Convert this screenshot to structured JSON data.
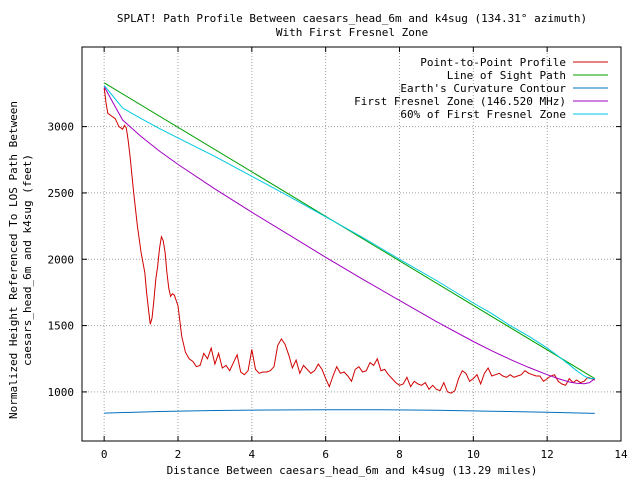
{
  "chart_data": {
    "type": "line",
    "title": "SPLAT! Path Profile Between caesars_head_6m and k4sug (134.31° azimuth)",
    "subtitle": "With First Fresnel Zone",
    "xlabel": "Distance Between caesars_head_6m and k4sug (13.29 miles)",
    "ylabel_line1": "Normalized Height Referenced To LOS Path Between",
    "ylabel_line2": "caesars_head_6m and k4sug (feet)",
    "xlim": [
      -0.6,
      14
    ],
    "ylim": [
      630,
      3600
    ],
    "x_ticks": [
      0,
      2,
      4,
      6,
      8,
      10,
      12,
      14
    ],
    "x_tick_labels": [
      "0",
      "2",
      "4",
      "6",
      "8",
      "10",
      "12",
      "14"
    ],
    "y_ticks": [
      1000,
      1500,
      2000,
      2500,
      3000
    ],
    "y_tick_labels": [
      "1000",
      "1500",
      "2000",
      "2500",
      "3000"
    ],
    "grid": true,
    "legend_position": "top-right",
    "series": [
      {
        "name": "Point-to-Point Profile",
        "color": "#d00000",
        "x": [
          0,
          0.05,
          0.1,
          0.15,
          0.2,
          0.3,
          0.4,
          0.45,
          0.5,
          0.55,
          0.6,
          0.65,
          0.7,
          0.8,
          0.9,
          1.0,
          1.1,
          1.15,
          1.2,
          1.25,
          1.3,
          1.35,
          1.4,
          1.45,
          1.5,
          1.55,
          1.6,
          1.65,
          1.7,
          1.75,
          1.8,
          1.85,
          1.9,
          2.0,
          2.1,
          2.2,
          2.3,
          2.4,
          2.5,
          2.6,
          2.7,
          2.8,
          2.9,
          3.0,
          3.1,
          3.2,
          3.3,
          3.4,
          3.5,
          3.6,
          3.7,
          3.8,
          3.9,
          4.0,
          4.1,
          4.2,
          4.3,
          4.4,
          4.5,
          4.6,
          4.7,
          4.8,
          4.9,
          5.0,
          5.1,
          5.2,
          5.3,
          5.4,
          5.5,
          5.6,
          5.7,
          5.8,
          5.9,
          6.0,
          6.1,
          6.2,
          6.3,
          6.4,
          6.5,
          6.6,
          6.7,
          6.8,
          6.9,
          7.0,
          7.1,
          7.2,
          7.3,
          7.4,
          7.5,
          7.6,
          7.7,
          7.8,
          7.9,
          8.0,
          8.1,
          8.2,
          8.3,
          8.4,
          8.5,
          8.6,
          8.7,
          8.8,
          8.9,
          9.0,
          9.1,
          9.2,
          9.3,
          9.4,
          9.5,
          9.6,
          9.7,
          9.8,
          9.9,
          10.0,
          10.1,
          10.2,
          10.3,
          10.4,
          10.5,
          10.6,
          10.7,
          10.8,
          10.9,
          11.0,
          11.1,
          11.2,
          11.3,
          11.4,
          11.5,
          11.6,
          11.7,
          11.8,
          11.9,
          12.0,
          12.1,
          12.2,
          12.3,
          12.4,
          12.5,
          12.6,
          12.7,
          12.8,
          12.9,
          13.0,
          13.1,
          13.2,
          13.29
        ],
        "y": [
          3290,
          3180,
          3100,
          3090,
          3080,
          3060,
          3000,
          2990,
          2980,
          3010,
          2990,
          2900,
          2780,
          2500,
          2250,
          2050,
          1900,
          1750,
          1620,
          1510,
          1560,
          1700,
          1850,
          1950,
          2080,
          2170,
          2140,
          2050,
          1900,
          1780,
          1720,
          1740,
          1730,
          1650,
          1420,
          1300,
          1250,
          1230,
          1190,
          1200,
          1290,
          1250,
          1330,
          1210,
          1290,
          1180,
          1200,
          1160,
          1220,
          1280,
          1150,
          1130,
          1160,
          1320,
          1170,
          1140,
          1150,
          1150,
          1160,
          1190,
          1350,
          1400,
          1360,
          1280,
          1180,
          1240,
          1140,
          1200,
          1170,
          1140,
          1160,
          1210,
          1170,
          1100,
          1040,
          1120,
          1190,
          1140,
          1150,
          1120,
          1080,
          1170,
          1190,
          1150,
          1160,
          1220,
          1200,
          1250,
          1160,
          1170,
          1130,
          1100,
          1070,
          1050,
          1060,
          1110,
          1040,
          1080,
          1060,
          1050,
          1070,
          1020,
          1050,
          1020,
          1010,
          1070,
          1000,
          990,
          1010,
          1100,
          1160,
          1140,
          1080,
          1100,
          1130,
          1060,
          1140,
          1180,
          1120,
          1130,
          1140,
          1120,
          1110,
          1130,
          1110,
          1120,
          1130,
          1160,
          1140,
          1130,
          1120,
          1120,
          1080,
          1100,
          1120,
          1130,
          1080,
          1060,
          1050,
          1100,
          1070,
          1090,
          1070,
          1080,
          1110,
          1100,
          1090
        ]
      },
      {
        "name": "Line of Sight Path",
        "color": "#00a000",
        "x": [
          0,
          13.29
        ],
        "y": [
          3330,
          1100
        ]
      },
      {
        "name": "Earth's Curvature Contour",
        "color": "#0070c0",
        "x": [
          0,
          1.5,
          3,
          4.5,
          6,
          7.5,
          9,
          10.5,
          12,
          13.29
        ],
        "y": [
          840,
          852,
          860,
          864,
          866,
          865,
          862,
          855,
          847,
          838
        ]
      },
      {
        "name": "First Fresnel Zone (146.520 MHz)",
        "color": "#a000c0",
        "x": [
          0,
          0.5,
          1,
          1.5,
          2,
          3,
          4,
          5,
          6,
          7,
          8,
          9,
          10,
          10.5,
          11,
          11.5,
          12,
          12.3,
          12.6,
          12.8,
          13.0,
          13.15,
          13.29
        ],
        "y": [
          3300,
          3050,
          2925,
          2815,
          2715,
          2530,
          2355,
          2185,
          2015,
          1850,
          1690,
          1530,
          1380,
          1310,
          1245,
          1185,
          1130,
          1100,
          1075,
          1065,
          1062,
          1070,
          1100
        ]
      },
      {
        "name": "60% of First Fresnel Zone",
        "color": "#00c8e0",
        "x": [
          0,
          0.5,
          1,
          1.5,
          2,
          3,
          4,
          5,
          6,
          7,
          8,
          9,
          10,
          10.5,
          11,
          11.5,
          12,
          12.3,
          12.6,
          12.8,
          13.0,
          13.15,
          13.29
        ],
        "y": [
          3310,
          3140,
          3060,
          2985,
          2915,
          2775,
          2625,
          2475,
          2320,
          2165,
          2000,
          1840,
          1670,
          1590,
          1500,
          1420,
          1330,
          1270,
          1205,
          1160,
          1120,
          1100,
          1100
        ]
      }
    ]
  }
}
